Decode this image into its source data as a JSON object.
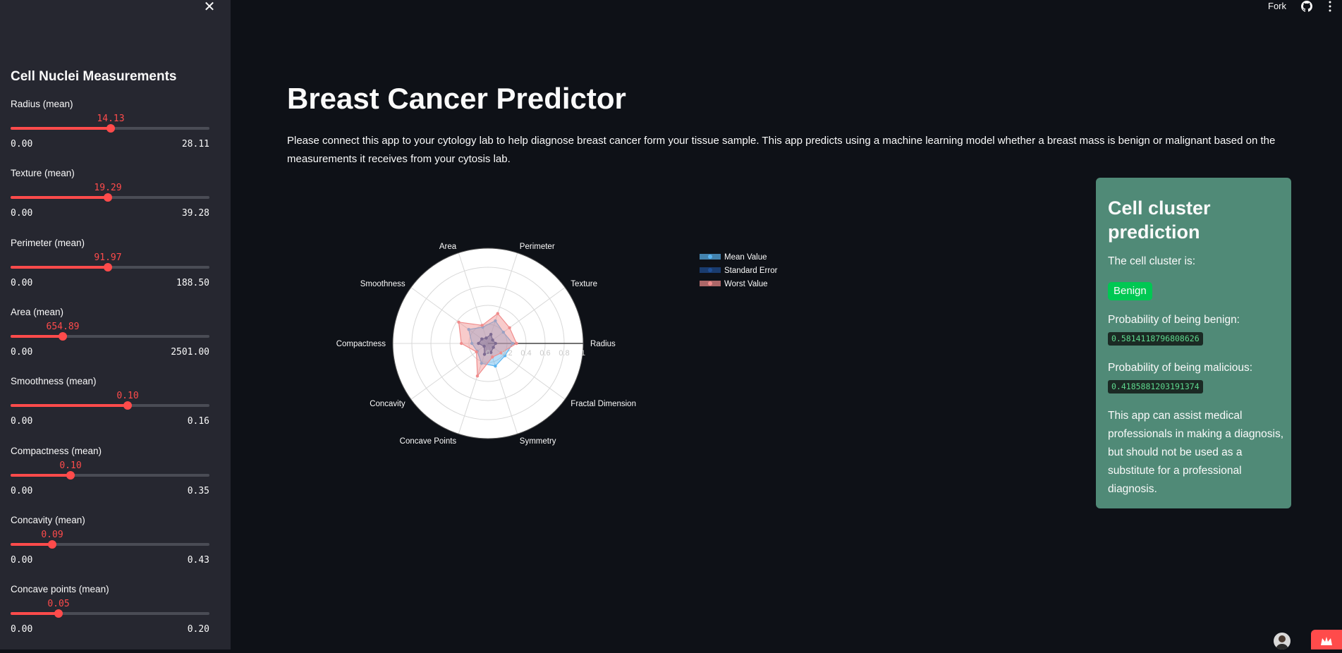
{
  "sidebar": {
    "title": "Cell Nuclei Measurements",
    "sliders": [
      {
        "label": "Radius (mean)",
        "value": "14.13",
        "min": "0.00",
        "max": "28.11",
        "fraction": 0.503
      },
      {
        "label": "Texture (mean)",
        "value": "19.29",
        "min": "0.00",
        "max": "39.28",
        "fraction": 0.491
      },
      {
        "label": "Perimeter (mean)",
        "value": "91.97",
        "min": "0.00",
        "max": "188.50",
        "fraction": 0.488
      },
      {
        "label": "Area (mean)",
        "value": "654.89",
        "min": "0.00",
        "max": "2501.00",
        "fraction": 0.262
      },
      {
        "label": "Smoothness (mean)",
        "value": "0.10",
        "min": "0.00",
        "max": "0.16",
        "fraction": 0.59
      },
      {
        "label": "Compactness (mean)",
        "value": "0.10",
        "min": "0.00",
        "max": "0.35",
        "fraction": 0.3
      },
      {
        "label": "Concavity (mean)",
        "value": "0.09",
        "min": "0.00",
        "max": "0.43",
        "fraction": 0.21
      },
      {
        "label": "Concave points (mean)",
        "value": "0.05",
        "min": "0.00",
        "max": "0.20",
        "fraction": 0.24
      }
    ],
    "close_icon": "close-icon"
  },
  "topbar": {
    "fork_label": "Fork",
    "github_icon": "github-icon",
    "menu_icon": "kebab-menu-icon"
  },
  "main": {
    "title": "Breast Cancer Predictor",
    "description": "Please connect this app to your cytology lab to help diagnose breast cancer form your tissue sample. This app predicts using a machine learning model whether a breast mass is benign or malignant based on the measurements it receives from your cytosis lab."
  },
  "prediction": {
    "heading": "Cell cluster prediction",
    "cluster_label": "The cell cluster is:",
    "result": "Benign",
    "benign_label": "Probability of being benign:",
    "benign_value": "0.5814118796808626",
    "malicious_label": "Probability of being malicious:",
    "malicious_value": "0.4185881203191374",
    "note": "This app can assist medical professionals in making a diagnosis, but should not be used as a substitute for a professional diagnosis.",
    "colors": {
      "card": "#508a77",
      "badge": "#00c853"
    }
  },
  "chart_data": {
    "type": "radar",
    "categories": [
      "Radius",
      "Texture",
      "Perimeter",
      "Area",
      "Smoothness",
      "Compactness",
      "Concavity",
      "Concave Points",
      "Symmetry",
      "Fractal Dimension"
    ],
    "radial_ticks": [
      "0",
      "0.2",
      "0.4",
      "0.6",
      "0.8",
      "1"
    ],
    "rlim": [
      0,
      1
    ],
    "series": [
      {
        "name": "Mean Value",
        "color": "#5ab4f0",
        "values": [
          0.26,
          0.2,
          0.25,
          0.18,
          0.25,
          0.17,
          0.14,
          0.22,
          0.25,
          0.22
        ]
      },
      {
        "name": "Standard Error",
        "color": "#1f4f96",
        "values": [
          0.08,
          0.06,
          0.1,
          0.06,
          0.08,
          0.1,
          0.05,
          0.12,
          0.1,
          0.07
        ]
      },
      {
        "name": "Worst Value",
        "color": "#f08c8c",
        "values": [
          0.3,
          0.28,
          0.33,
          0.2,
          0.38,
          0.28,
          0.15,
          0.36,
          0.15,
          0.17
        ]
      }
    ],
    "legend_position": "top-right"
  }
}
